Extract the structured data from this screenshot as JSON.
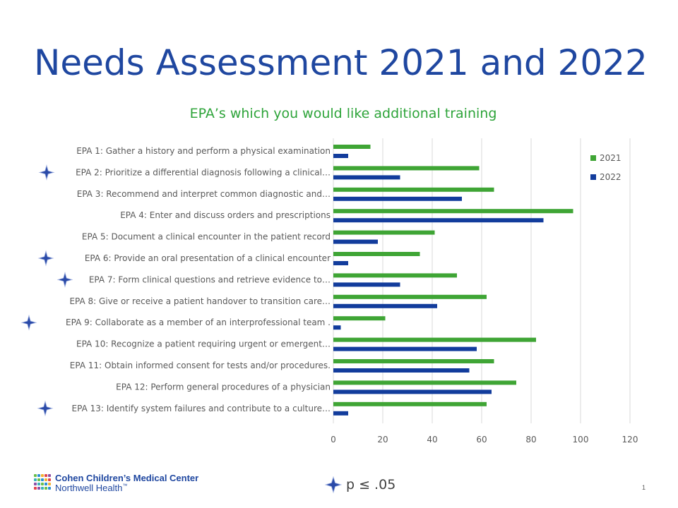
{
  "slide": {
    "title": "Needs Assessment 2021 and 2022",
    "page_number": "1"
  },
  "footer": {
    "logo_line1": "Cohen Children’s Medical Center",
    "logo_line2": "Northwell Health",
    "logo_trademark": "™",
    "significance_note": "p ≤ .05",
    "significance_icon": "four-point-star-icon"
  },
  "colors": {
    "title": "#1f47a0",
    "chart_title": "#2ea43a",
    "series_2021": "#3fa535",
    "series_2022": "#123c9c",
    "star": "#2a4aa8"
  },
  "chart_data": {
    "type": "bar",
    "orientation": "horizontal",
    "title": "EPA’s which you would like additional training",
    "categories": [
      "EPA 1: Gather a history and perform a physical examination",
      "EPA 2: Prioritize a differential diagnosis following a clinical…",
      "EPA 3: Recommend and interpret common diagnostic and…",
      "EPA 4: Enter and discuss orders and prescriptions",
      "EPA 5: Document a clinical encounter in the patient record",
      "EPA 6: Provide an oral presentation of a clinical encounter",
      "EPA 7: Form clinical questions and retrieve evidence to…",
      "EPA 8: Give or receive a patient handover to transition care…",
      "EPA 9: Collaborate as a member of an interprofessional team .",
      "EPA 10: Recognize a patient requiring urgent or emergent…",
      "EPA 11: Obtain informed consent for tests and/or procedures.",
      "EPA 12: Perform general procedures of a physician",
      "EPA 13: Identify system failures and contribute to a culture…"
    ],
    "significant": [
      false,
      true,
      false,
      false,
      false,
      true,
      true,
      false,
      true,
      false,
      false,
      false,
      true
    ],
    "series": [
      {
        "name": "2021",
        "values": [
          15,
          59,
          65,
          97,
          41,
          35,
          50,
          62,
          21,
          82,
          65,
          74,
          62
        ]
      },
      {
        "name": "2022",
        "values": [
          6,
          27,
          52,
          85,
          18,
          6,
          27,
          42,
          3,
          58,
          55,
          64,
          6
        ]
      }
    ],
    "xlim": [
      0,
      120
    ],
    "xticks": [
      0,
      20,
      40,
      60,
      80,
      100,
      120
    ],
    "grid": true,
    "legend_position": "top-right"
  }
}
